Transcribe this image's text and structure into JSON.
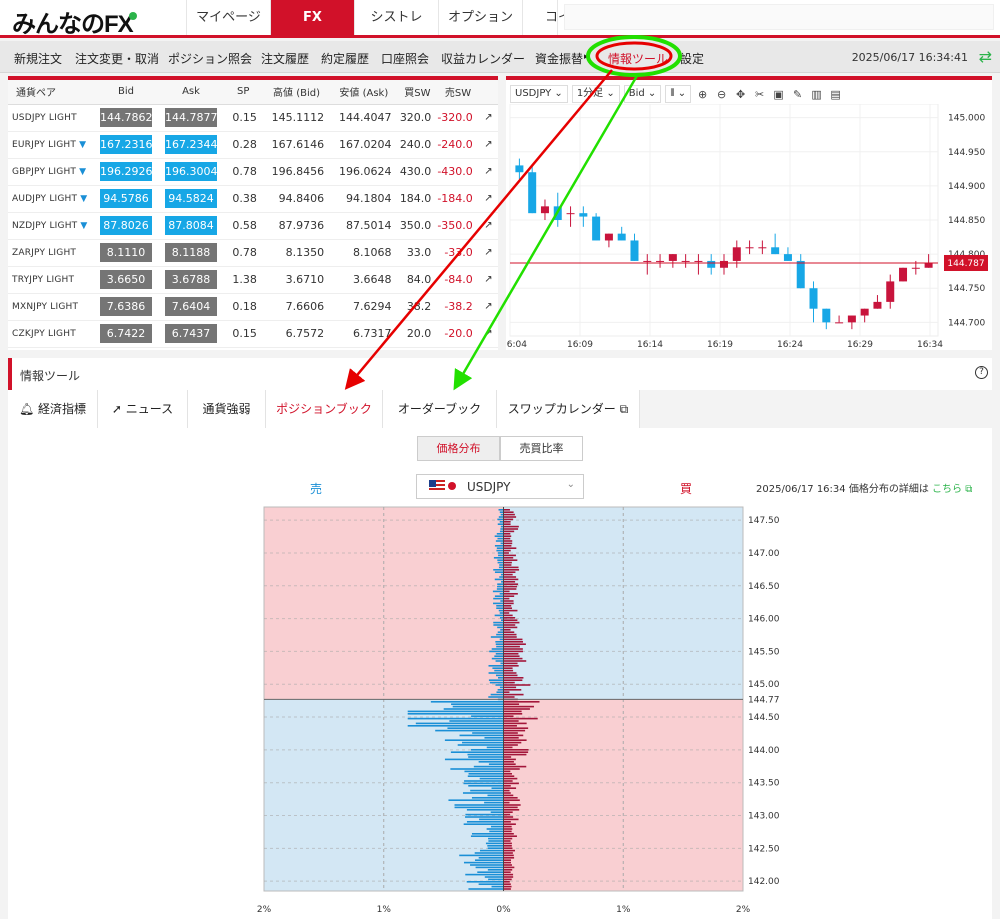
{
  "brand": {
    "logo": "みんなのFX"
  },
  "topnav": [
    "マイページ",
    "FX",
    "シストレ",
    "オプション",
    "コイン"
  ],
  "menu": [
    "新規注文",
    "注文変更・取消",
    "ポジション照会",
    "注文履歴",
    "約定履歴",
    "口座照会",
    "収益カレンダー",
    "資金振替",
    "情報ツール",
    "設定"
  ],
  "timestamp": "2025/06/17 16:34:41",
  "rates": {
    "headers": [
      "通貨ペア",
      "Bid",
      "Ask",
      "SP",
      "高値 (Bid)",
      "安値 (Ask)",
      "買SW",
      "売SW"
    ],
    "rows": [
      {
        "pair": "USDJPY LIGHT",
        "arrow": false,
        "bid": "144.7862",
        "ask": "144.7877",
        "sp": "0.15",
        "high": "145.1112",
        "low": "144.4047",
        "buysw": "320.0",
        "sellsw": "-320.0",
        "color": "gray"
      },
      {
        "pair": "EURJPY LIGHT",
        "arrow": true,
        "bid": "167.2316",
        "ask": "167.2344",
        "sp": "0.28",
        "high": "167.6146",
        "low": "167.0204",
        "buysw": "240.0",
        "sellsw": "-240.0",
        "color": "blue"
      },
      {
        "pair": "GBPJPY LIGHT",
        "arrow": true,
        "bid": "196.2926",
        "ask": "196.3004",
        "sp": "0.78",
        "high": "196.8456",
        "low": "196.0624",
        "buysw": "430.0",
        "sellsw": "-430.0",
        "color": "blue"
      },
      {
        "pair": "AUDJPY LIGHT",
        "arrow": true,
        "bid": "94.5786",
        "ask": "94.5824",
        "sp": "0.38",
        "high": "94.8406",
        "low": "94.1804",
        "buysw": "184.0",
        "sellsw": "-184.0",
        "color": "blue"
      },
      {
        "pair": "NZDJPY LIGHT",
        "arrow": true,
        "bid": "87.8026",
        "ask": "87.8084",
        "sp": "0.58",
        "high": "87.9736",
        "low": "87.5014",
        "buysw": "350.0",
        "sellsw": "-350.0",
        "color": "blue"
      },
      {
        "pair": "ZARJPY LIGHT",
        "arrow": false,
        "bid": "8.1110",
        "ask": "8.1188",
        "sp": "0.78",
        "high": "8.1350",
        "low": "8.1068",
        "buysw": "33.0",
        "sellsw": "-33.0",
        "color": "gray"
      },
      {
        "pair": "TRYJPY LIGHT",
        "arrow": false,
        "bid": "3.6650",
        "ask": "3.6788",
        "sp": "1.38",
        "high": "3.6710",
        "low": "3.6648",
        "buysw": "84.0",
        "sellsw": "-84.0",
        "color": "gray"
      },
      {
        "pair": "MXNJPY LIGHT",
        "arrow": false,
        "bid": "7.6386",
        "ask": "7.6404",
        "sp": "0.18",
        "high": "7.6606",
        "low": "7.6294",
        "buysw": "38.2",
        "sellsw": "-38.2",
        "color": "gray"
      },
      {
        "pair": "CZKJPY LIGHT",
        "arrow": false,
        "bid": "6.7422",
        "ask": "6.7437",
        "sp": "0.15",
        "high": "6.7572",
        "low": "6.7317",
        "buysw": "20.0",
        "sellsw": "-20.0",
        "color": "gray"
      }
    ]
  },
  "chart_toolbar": {
    "symbol": "USDJPY",
    "interval": "1分足",
    "side": "Bid"
  },
  "chart_data": [
    {
      "type": "candlestick",
      "symbol": "USDJPY",
      "x_labels": [
        "16:04",
        "16:09",
        "16:14",
        "16:19",
        "16:24",
        "16:29",
        "16:34"
      ],
      "y_ticks": [
        145.0,
        144.95,
        144.9,
        144.85,
        144.8,
        144.75,
        144.7
      ],
      "ylim": [
        144.68,
        145.02
      ],
      "current": "144.787",
      "candles": [
        [
          144.93,
          144.94,
          144.91,
          144.92
        ],
        [
          144.92,
          144.93,
          144.86,
          144.86
        ],
        [
          144.86,
          144.88,
          144.85,
          144.87
        ],
        [
          144.87,
          144.89,
          144.84,
          144.85
        ],
        [
          144.86,
          144.87,
          144.84,
          144.86
        ],
        [
          144.86,
          144.87,
          144.84,
          144.855
        ],
        [
          144.855,
          144.86,
          144.82,
          144.82
        ],
        [
          144.82,
          144.83,
          144.81,
          144.83
        ],
        [
          144.83,
          144.84,
          144.82,
          144.82
        ],
        [
          144.82,
          144.83,
          144.79,
          144.79
        ],
        [
          144.79,
          144.8,
          144.77,
          144.79
        ],
        [
          144.79,
          144.8,
          144.78,
          144.79
        ],
        [
          144.79,
          144.8,
          144.78,
          144.8
        ],
        [
          144.79,
          144.8,
          144.78,
          144.79
        ],
        [
          144.79,
          144.8,
          144.77,
          144.79
        ],
        [
          144.79,
          144.8,
          144.77,
          144.78
        ],
        [
          144.78,
          144.8,
          144.77,
          144.79
        ],
        [
          144.79,
          144.82,
          144.78,
          144.81
        ],
        [
          144.81,
          144.82,
          144.8,
          144.81
        ],
        [
          144.81,
          144.82,
          144.8,
          144.81
        ],
        [
          144.81,
          144.83,
          144.8,
          144.8
        ],
        [
          144.8,
          144.81,
          144.79,
          144.79
        ],
        [
          144.79,
          144.8,
          144.75,
          144.75
        ],
        [
          144.75,
          144.76,
          144.7,
          144.72
        ],
        [
          144.72,
          144.72,
          144.69,
          144.7
        ],
        [
          144.7,
          144.71,
          144.7,
          144.7
        ],
        [
          144.7,
          144.71,
          144.69,
          144.71
        ],
        [
          144.71,
          144.72,
          144.7,
          144.72
        ],
        [
          144.72,
          144.74,
          144.72,
          144.73
        ],
        [
          144.73,
          144.77,
          144.72,
          144.76
        ],
        [
          144.76,
          144.78,
          144.76,
          144.78
        ],
        [
          144.78,
          144.79,
          144.77,
          144.78
        ],
        [
          144.78,
          144.8,
          144.78,
          144.787
        ]
      ]
    },
    {
      "type": "bar",
      "title": "ポジションブック",
      "symbol": "USDJPY",
      "current_price": "144.77",
      "y_ticks": [
        147.5,
        147.0,
        146.5,
        146.0,
        145.5,
        145.0,
        144.5,
        144.0,
        143.5,
        143.0,
        142.5,
        142.0
      ],
      "x_ticks": [
        "2%",
        "1%",
        "0%",
        "1%",
        "2%"
      ],
      "ylim": [
        141.85,
        147.7
      ],
      "xlim_pct": 2
    }
  ],
  "info_title": "情報ツール",
  "info_help": "?",
  "tabs": [
    "経済指標",
    "ニュース",
    "通貨強弱",
    "ポジションブック",
    "オーダーブック",
    "スワップカレンダー"
  ],
  "segments": [
    "価格分布",
    "売買比率"
  ],
  "book": {
    "sell_label": "売",
    "buy_label": "買",
    "symbol": "USDJPY",
    "datetime": "2025/06/17 16:34",
    "detail_text": "価格分布の詳細は",
    "detail_link": "こちら"
  },
  "colors": {
    "brand_red": "#d11129",
    "blue": "#17a7e6",
    "green": "#2bb34a"
  }
}
